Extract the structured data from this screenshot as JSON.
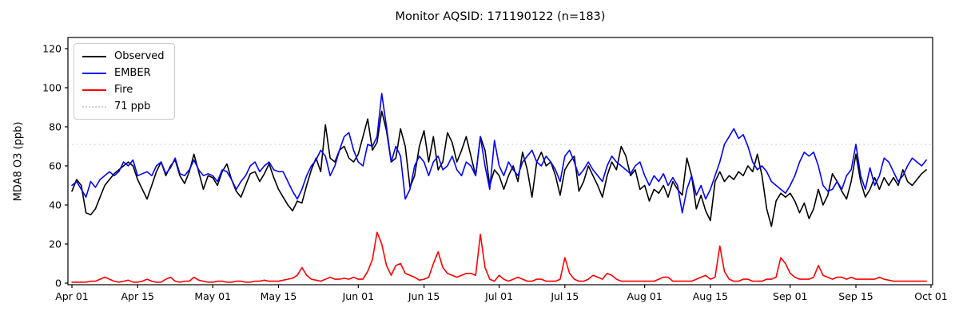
{
  "title": "Monitor AQSID: 171190122 (n=183)",
  "chart_data": {
    "type": "line",
    "title": "Monitor AQSID: 171190122 (n=183)",
    "xlabel": "",
    "ylabel": "MDA8 O3 (ppb)",
    "ylim": [
      0,
      125
    ],
    "yticks": [
      0,
      20,
      40,
      60,
      80,
      100,
      120
    ],
    "grid": false,
    "legend_position": "upper left",
    "n_points": 183,
    "x_start_label": "Apr 01",
    "x_end_label": "Oct 01",
    "x_tick_days": [
      0,
      14,
      30,
      44,
      61,
      75,
      91,
      105,
      122,
      136,
      153,
      167,
      183
    ],
    "x_tick_labels": [
      "Apr 01",
      "Apr 15",
      "May 01",
      "May 15",
      "Jun 01",
      "Jun 15",
      "Jul 01",
      "Jul 15",
      "Aug 01",
      "Aug 15",
      "Sep 01",
      "Sep 15",
      "Oct 01"
    ],
    "threshold": {
      "value": 71,
      "label": "71 ppb",
      "color": "#d3d3d3",
      "style": "dotted"
    },
    "series": [
      {
        "name": "Observed",
        "color": "#000000",
        "values": [
          47,
          53,
          50,
          36,
          35,
          38,
          44,
          50,
          53,
          56,
          58,
          60,
          62,
          60,
          53,
          48,
          43,
          50,
          57,
          62,
          55,
          60,
          63,
          55,
          51,
          57,
          66,
          57,
          48,
          55,
          54,
          50,
          57,
          61,
          53,
          47,
          44,
          50,
          56,
          57,
          52,
          56,
          61,
          54,
          48,
          44,
          40,
          37,
          42,
          41,
          50,
          58,
          64,
          57,
          81,
          64,
          62,
          68,
          70,
          64,
          62,
          66,
          75,
          84,
          68,
          72,
          88,
          78,
          62,
          64,
          79,
          70,
          49,
          55,
          70,
          78,
          62,
          75,
          58,
          62,
          77,
          72,
          62,
          68,
          75,
          65,
          55,
          75,
          68,
          50,
          58,
          55,
          48,
          55,
          60,
          52,
          67,
          58,
          44,
          62,
          67,
          60,
          62,
          55,
          45,
          58,
          62,
          65,
          47,
          52,
          60,
          55,
          50,
          44,
          55,
          62,
          58,
          70,
          65,
          55,
          58,
          48,
          50,
          42,
          48,
          46,
          50,
          44,
          52,
          48,
          45,
          64,
          55,
          38,
          45,
          37,
          32,
          52,
          57,
          52,
          55,
          53,
          57,
          55,
          60,
          57,
          66,
          55,
          38,
          29,
          42,
          46,
          44,
          46,
          42,
          36,
          41,
          33,
          38,
          48,
          40,
          45,
          56,
          52,
          47,
          43,
          52,
          66,
          52,
          44,
          48,
          54,
          48,
          54,
          50,
          54,
          50,
          58,
          52,
          50,
          53,
          56,
          58
        ]
      },
      {
        "name": "EMBER",
        "color": "#0000ff",
        "values": [
          50,
          52,
          48,
          44,
          52,
          49,
          53,
          55,
          57,
          55,
          57,
          62,
          60,
          63,
          55,
          56,
          57,
          55,
          60,
          62,
          56,
          59,
          64,
          56,
          55,
          58,
          63,
          58,
          55,
          56,
          55,
          52,
          58,
          57,
          53,
          48,
          52,
          55,
          60,
          62,
          57,
          60,
          62,
          58,
          57,
          57,
          52,
          47,
          43,
          48,
          55,
          60,
          63,
          68,
          65,
          55,
          60,
          68,
          75,
          77,
          68,
          62,
          60,
          71,
          70,
          75,
          97,
          80,
          62,
          70,
          65,
          43,
          48,
          60,
          65,
          62,
          55,
          62,
          65,
          58,
          60,
          65,
          58,
          55,
          62,
          60,
          55,
          75,
          60,
          48,
          73,
          60,
          55,
          62,
          58,
          55,
          62,
          65,
          68,
          62,
          60,
          65,
          62,
          58,
          52,
          65,
          68,
          62,
          55,
          58,
          62,
          58,
          55,
          52,
          60,
          65,
          62,
          60,
          58,
          56,
          60,
          62,
          55,
          50,
          55,
          52,
          56,
          50,
          54,
          50,
          36,
          48,
          55,
          45,
          50,
          43,
          48,
          55,
          62,
          71,
          75,
          79,
          74,
          76,
          70,
          62,
          58,
          60,
          57,
          52,
          50,
          48,
          46,
          50,
          55,
          62,
          67,
          65,
          67,
          60,
          50,
          47,
          48,
          52,
          48,
          55,
          58,
          71,
          55,
          48,
          59,
          50,
          55,
          64,
          62,
          57,
          52,
          55,
          60,
          64,
          62,
          60,
          63
        ]
      },
      {
        "name": "Fire",
        "color": "#ff0000",
        "values": [
          0.5,
          0.5,
          0.5,
          0.5,
          1,
          1,
          2,
          3,
          2,
          1,
          0.5,
          1,
          1.5,
          0.5,
          0.5,
          1,
          2,
          1,
          0.5,
          0.5,
          2,
          3,
          1,
          0.5,
          1,
          1,
          3,
          1.5,
          1,
          0.5,
          0.5,
          1,
          1,
          0.5,
          0.5,
          1,
          1,
          0.5,
          0.5,
          1,
          1,
          1.5,
          1,
          1,
          1,
          1.5,
          2,
          2.5,
          4,
          8,
          4,
          2,
          1.5,
          1,
          2,
          3,
          2,
          2,
          2.5,
          2,
          3,
          2,
          2,
          6,
          12,
          26,
          20,
          9,
          4,
          9,
          10,
          5,
          4,
          3,
          1.5,
          2,
          3,
          10,
          16,
          8,
          5,
          4,
          3,
          4,
          5,
          5,
          4,
          25,
          8,
          2,
          1,
          4,
          2,
          1,
          2,
          3,
          2,
          1,
          1,
          2,
          2,
          1,
          1,
          1,
          2,
          13,
          5,
          2,
          1,
          1,
          2,
          4,
          3,
          2,
          5,
          4,
          2,
          1,
          1,
          1,
          1,
          1,
          1,
          1,
          1,
          2,
          3,
          3,
          1,
          1,
          1,
          1,
          1,
          2,
          3,
          4,
          2,
          3,
          19,
          6,
          2,
          1,
          1,
          2,
          2,
          1,
          1,
          1,
          2,
          2,
          3,
          13,
          10,
          5,
          3,
          2,
          2,
          2,
          3,
          9,
          4,
          3,
          2,
          3,
          3,
          2,
          3,
          2,
          2,
          2,
          2,
          2,
          3,
          2,
          1.5,
          1,
          1,
          1,
          1,
          1,
          1,
          1,
          1
        ]
      }
    ]
  }
}
